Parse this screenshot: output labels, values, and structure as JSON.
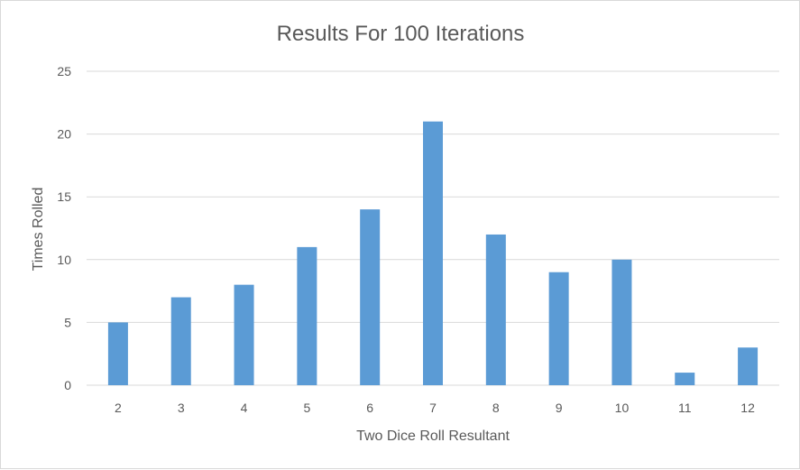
{
  "chart_data": {
    "type": "bar",
    "title": "Results For 100 Iterations",
    "xlabel": "Two Dice Roll Resultant",
    "ylabel": "Times Rolled",
    "categories": [
      "2",
      "3",
      "4",
      "5",
      "6",
      "7",
      "8",
      "9",
      "10",
      "11",
      "12"
    ],
    "values": [
      5,
      7,
      8,
      11,
      14,
      21,
      12,
      9,
      10,
      1,
      3
    ],
    "ylim": [
      0,
      25
    ],
    "yticks": [
      "0",
      "5",
      "10",
      "15",
      "20",
      "25"
    ],
    "grid": true,
    "legend": "none",
    "bar_color": "#5b9bd5"
  }
}
